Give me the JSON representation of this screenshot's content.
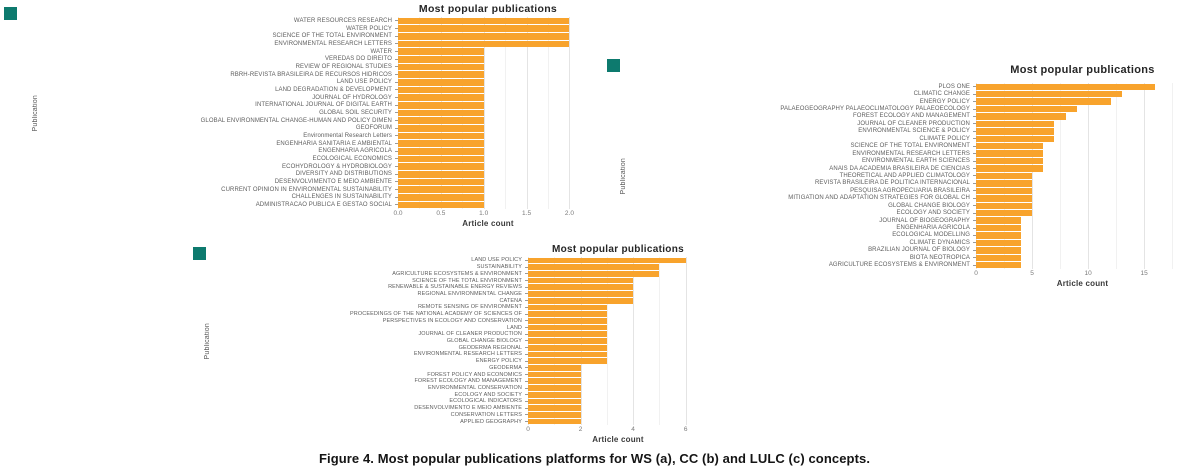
{
  "figure": {
    "caption_label": "Figure 4.",
    "caption_text": " Most popular publications platforms for WS (a), CC (b) and LULC (c) concepts."
  },
  "colors": {
    "bar": "#F8A32C",
    "bullet_marker": "#0D7A6E"
  },
  "chart_data": [
    {
      "id": "a",
      "type": "bar",
      "orientation": "horizontal",
      "title": "Most popular publications",
      "xlabel": "Article count",
      "ylabel": "Publication",
      "xlim": [
        0,
        2.1
      ],
      "grid": true,
      "xticks": [
        "0.0",
        "0.5",
        "1.0",
        "1.5",
        "2.0"
      ],
      "xtick_values": [
        0,
        0.5,
        1,
        1.5,
        2
      ],
      "categories": [
        "WATER RESOURCES RESEARCH",
        "WATER POLICY",
        "SCIENCE OF THE TOTAL ENVIRONMENT",
        "ENVIRONMENTAL RESEARCH LETTERS",
        "WATER",
        "VEREDAS DO DIREITO",
        "REVIEW OF REGIONAL STUDIES",
        "RBRH-REVISTA BRASILEIRA DE RECURSOS HIDRICOS",
        "LAND USE POLICY",
        "LAND DEGRADATION & DEVELOPMENT",
        "JOURNAL OF HYDROLOGY",
        "INTERNATIONAL JOURNAL OF DIGITAL EARTH",
        "GLOBAL SOIL SECURITY",
        "GLOBAL ENVIRONMENTAL CHANGE-HUMAN AND POLICY DIMEN",
        "GEOFORUM",
        "Environmental Research Letters",
        "ENGENHARIA SANITARIA E AMBIENTAL",
        "ENGENHARIA AGRICOLA",
        "ECOLOGICAL ECONOMICS",
        "ECOHYDROLOGY & HYDROBIOLOGY",
        "DIVERSITY AND DISTRIBUTIONS",
        "DESENVOLVIMENTO E MEIO AMBIENTE",
        "CURRENT OPINION IN ENVIRONMENTAL SUSTAINABILITY",
        "CHALLENGES IN SUSTAINABILITY",
        "ADMINISTRACAO PUBLICA E GESTAO SOCIAL"
      ],
      "values": [
        2,
        2,
        2,
        2,
        1,
        1,
        1,
        1,
        1,
        1,
        1,
        1,
        1,
        1,
        1,
        1,
        1,
        1,
        1,
        1,
        1,
        1,
        1,
        1,
        1
      ]
    },
    {
      "id": "b",
      "type": "bar",
      "orientation": "horizontal",
      "title": "Most popular publications",
      "xlabel": "Article count",
      "ylabel": "Publication",
      "xlim": [
        0,
        19
      ],
      "grid": true,
      "xticks": [
        "0",
        "5",
        "10",
        "15"
      ],
      "xtick_values": [
        0,
        5,
        10,
        15
      ],
      "categories": [
        "PLOS ONE",
        "CLIMATIC CHANGE",
        "ENERGY POLICY",
        "PALAEOGEOGRAPHY PALAEOCLIMATOLOGY PALAEOECOLOGY",
        "FOREST ECOLOGY AND MANAGEMENT",
        "JOURNAL OF CLEANER PRODUCTION",
        "ENVIRONMENTAL SCIENCE & POLICY",
        "CLIMATE POLICY",
        "SCIENCE OF THE TOTAL ENVIRONMENT",
        "ENVIRONMENTAL RESEARCH LETTERS",
        "ENVIRONMENTAL EARTH SCIENCES",
        "ANAIS DA ACADEMIA BRASILEIRA DE CIENCIAS",
        "THEORETICAL AND APPLIED CLIMATOLOGY",
        "REVISTA BRASILEIRA DE POLITICA INTERNACIONAL",
        "PESQUISA AGROPECUARIA BRASILEIRA",
        "MITIGATION AND ADAPTATION STRATEGIES FOR GLOBAL CH",
        "GLOBAL CHANGE BIOLOGY",
        "ECOLOGY AND SOCIETY",
        "JOURNAL OF BIOGEOGRAPHY",
        "ENGENHARIA AGRICOLA",
        "ECOLOGICAL MODELLING",
        "CLIMATE DYNAMICS",
        "BRAZILIAN JOURNAL OF BIOLOGY",
        "BIOTA NEOTROPICA",
        "AGRICULTURE ECOSYSTEMS & ENVIRONMENT"
      ],
      "values": [
        16,
        13,
        12,
        9,
        8,
        7,
        7,
        7,
        6,
        6,
        6,
        6,
        5,
        5,
        5,
        5,
        5,
        5,
        4,
        4,
        4,
        4,
        4,
        4,
        4
      ]
    },
    {
      "id": "c",
      "type": "bar",
      "orientation": "horizontal",
      "title": "Most popular publications",
      "xlabel": "Article count",
      "ylabel": "Publication",
      "xlim": [
        0,
        6.85
      ],
      "grid": true,
      "xticks": [
        "0",
        "2",
        "4",
        "6"
      ],
      "xtick_values": [
        0,
        2,
        4,
        6
      ],
      "categories": [
        "LAND USE POLICY",
        "SUSTAINABILITY",
        "AGRICULTURE ECOSYSTEMS & ENVIRONMENT",
        "SCIENCE OF THE TOTAL ENVIRONMENT",
        "RENEWABLE & SUSTAINABLE ENERGY REVIEWS",
        "REGIONAL ENVIRONMENTAL CHANGE",
        "CATENA",
        "REMOTE SENSING OF ENVIRONMENT",
        "PROCEEDINGS OF THE NATIONAL ACADEMY OF SCIENCES OF",
        "PERSPECTIVES IN ECOLOGY AND CONSERVATION",
        "LAND",
        "JOURNAL OF CLEANER PRODUCTION",
        "GLOBAL CHANGE BIOLOGY",
        "GEODERMA REGIONAL",
        "ENVIRONMENTAL RESEARCH LETTERS",
        "ENERGY POLICY",
        "GEODERMA",
        "FOREST POLICY AND ECONOMICS",
        "FOREST ECOLOGY AND MANAGEMENT",
        "ENVIRONMENTAL CONSERVATION",
        "ECOLOGY AND SOCIETY",
        "ECOLOGICAL INDICATORS",
        "DESENVOLVIMENTO E MEIO AMBIENTE",
        "CONSERVATION LETTERS",
        "APPLIED GEOGRAPHY"
      ],
      "values": [
        6,
        5,
        5,
        4,
        4,
        4,
        4,
        3,
        3,
        3,
        3,
        3,
        3,
        3,
        3,
        3,
        2,
        2,
        2,
        2,
        2,
        2,
        2,
        2,
        2
      ]
    }
  ]
}
